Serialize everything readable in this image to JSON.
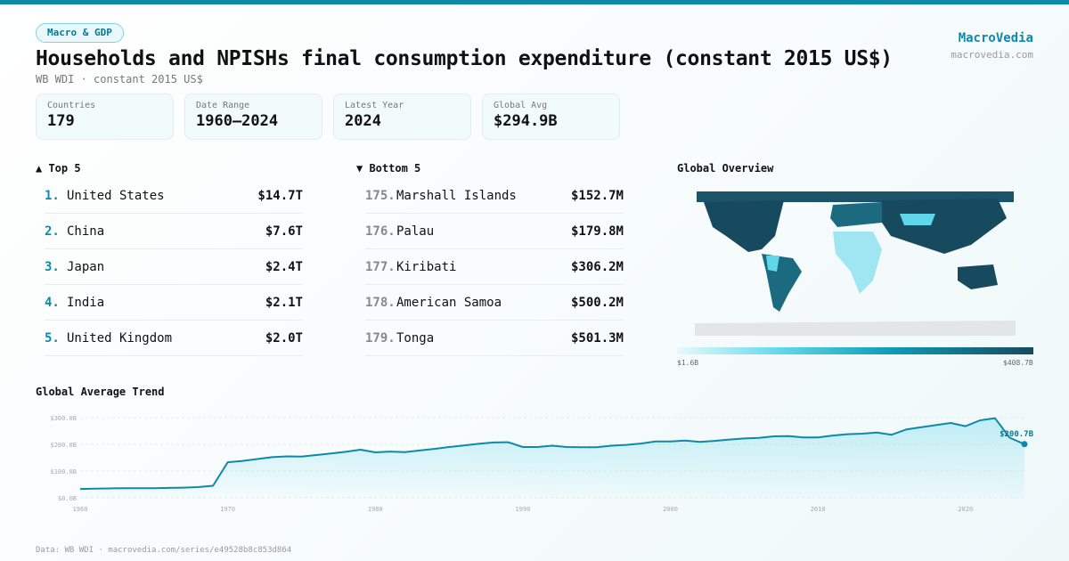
{
  "badge": "Macro & GDP",
  "title": "Households and NPISHs final consumption expenditure (constant 2015 US$)",
  "subtitle": "WB WDI · constant 2015 US$",
  "brand": {
    "name": "MacroVedia",
    "url": "macrovedia.com"
  },
  "stats": [
    {
      "label": "Countries",
      "value": "179"
    },
    {
      "label": "Date Range",
      "value": "1960–2024"
    },
    {
      "label": "Latest Year",
      "value": "2024"
    },
    {
      "label": "Global Avg",
      "value": "$294.9B"
    }
  ],
  "top5": {
    "title": "▲ Top 5",
    "items": [
      {
        "rank": "1.",
        "country": "United States",
        "value": "$14.7T"
      },
      {
        "rank": "2.",
        "country": "China",
        "value": "$7.6T"
      },
      {
        "rank": "3.",
        "country": "Japan",
        "value": "$2.4T"
      },
      {
        "rank": "4.",
        "country": "India",
        "value": "$2.1T"
      },
      {
        "rank": "5.",
        "country": "United Kingdom",
        "value": "$2.0T"
      }
    ]
  },
  "bottom5": {
    "title": "▼ Bottom 5",
    "items": [
      {
        "rank": "175.",
        "country": "Marshall Islands",
        "value": "$152.7M"
      },
      {
        "rank": "176.",
        "country": "Palau",
        "value": "$179.8M"
      },
      {
        "rank": "177.",
        "country": "Kiribati",
        "value": "$306.2M"
      },
      {
        "rank": "178.",
        "country": "American Samoa",
        "value": "$500.2M"
      },
      {
        "rank": "179.",
        "country": "Tonga",
        "value": "$501.3M"
      }
    ]
  },
  "map": {
    "title": "Global Overview",
    "min_label": "$1.6B",
    "max_label": "$408.7B",
    "colors": [
      "#e6fafd",
      "#5fd6ea",
      "#0e9bb8",
      "#174a5e"
    ]
  },
  "chart_data": {
    "type": "area",
    "title": "Global Average Trend",
    "xlabel": "",
    "ylabel": "",
    "x": [
      1960,
      1961,
      1962,
      1963,
      1964,
      1965,
      1966,
      1967,
      1968,
      1969,
      1970,
      1971,
      1972,
      1973,
      1974,
      1975,
      1976,
      1977,
      1978,
      1979,
      1980,
      1981,
      1982,
      1983,
      1984,
      1985,
      1986,
      1987,
      1988,
      1989,
      1990,
      1991,
      1992,
      1993,
      1994,
      1995,
      1996,
      1997,
      1998,
      1999,
      2000,
      2001,
      2002,
      2003,
      2004,
      2005,
      2006,
      2007,
      2008,
      2009,
      2010,
      2011,
      2012,
      2013,
      2014,
      2015,
      2016,
      2017,
      2018,
      2019,
      2020,
      2021,
      2022,
      2023,
      2024
    ],
    "values": [
      33,
      34,
      35,
      36,
      36,
      36,
      37,
      38,
      40,
      45,
      133,
      138,
      145,
      152,
      155,
      154,
      160,
      166,
      172,
      180,
      170,
      173,
      171,
      177,
      183,
      190,
      196,
      202,
      207,
      208,
      190,
      190,
      195,
      190,
      189,
      189,
      195,
      198,
      203,
      211,
      211,
      214,
      209,
      213,
      218,
      222,
      224,
      230,
      231,
      226,
      226,
      233,
      238,
      240,
      244,
      236,
      256,
      264,
      272,
      280,
      268,
      290,
      298,
      225,
      200.7
    ],
    "unit": "B US$",
    "ylim": [
      0,
      300
    ],
    "yticks": [
      "$0.0B",
      "$100.0B",
      "$200.0B",
      "$300.0B"
    ],
    "xticks": [
      "1960",
      "1970",
      "1980",
      "1990",
      "2000",
      "2010",
      "2020"
    ],
    "last_label": "$200.7B",
    "grid": true,
    "color": "#0e8aa8"
  },
  "footer": "Data: WB WDI · macrovedia.com/series/e49528b8c853d864"
}
